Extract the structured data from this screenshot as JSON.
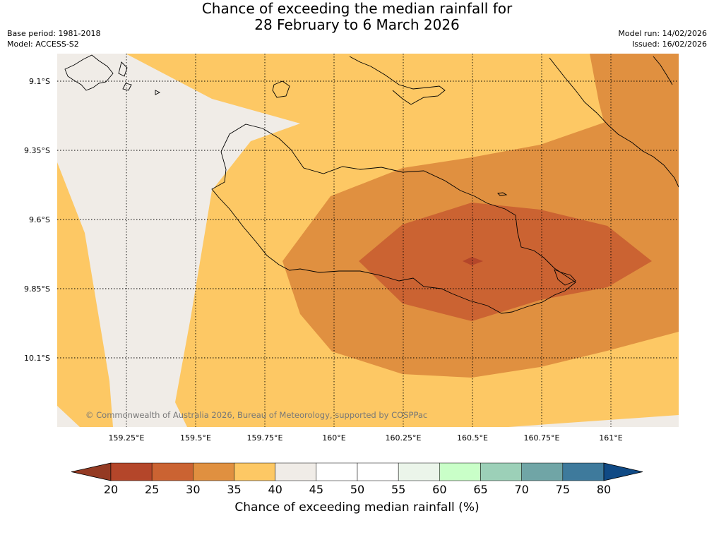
{
  "header": {
    "title_line1": "Chance of exceeding the median rainfall for",
    "title_line2": "28 February to 6 March 2026",
    "base_period": "Base period: 1981-2018",
    "model": "Model: ACCESS-S2",
    "model_run": "Model run: 14/02/2026",
    "issued": "Issued: 16/02/2026"
  },
  "map": {
    "lat_labels": [
      "9.1°S",
      "9.35°S",
      "9.6°S",
      "9.85°S",
      "10.1°S"
    ],
    "lon_labels": [
      "159.25°E",
      "159.5°E",
      "159.75°E",
      "160°E",
      "160.25°E",
      "160.5°E",
      "160.75°E",
      "161°E"
    ],
    "lat_values": [
      -9.1,
      -9.35,
      -9.6,
      -9.85,
      -10.1
    ],
    "lon_values": [
      159.25,
      159.5,
      159.75,
      160.0,
      160.25,
      160.5,
      160.75,
      161.0
    ],
    "copyright": "© Commonwealth of Australia 2026, Bureau of Meteorology, supported by COSPPac",
    "region_colors": {
      "40-45": "#f0ece7",
      "35-40": "#fdc864",
      "30-35": "#e09040",
      "25-30": "#cb6332",
      "20-25": "#b4462a"
    }
  },
  "colorbar": {
    "title": "Chance of exceeding median rainfall (%)",
    "ticks": [
      "20",
      "25",
      "30",
      "35",
      "40",
      "45",
      "50",
      "55",
      "60",
      "65",
      "70",
      "75",
      "80"
    ],
    "under_color": "#943a23",
    "over_color": "#104a85",
    "colors": [
      "#b4462a",
      "#cb6332",
      "#e09040",
      "#fdc864",
      "#f0ece7",
      "#ffffff",
      "#ffffff",
      "#ebf5ea",
      "#c9ffc8",
      "#9cd0b8",
      "#70a5a6",
      "#3e7a9c"
    ]
  }
}
